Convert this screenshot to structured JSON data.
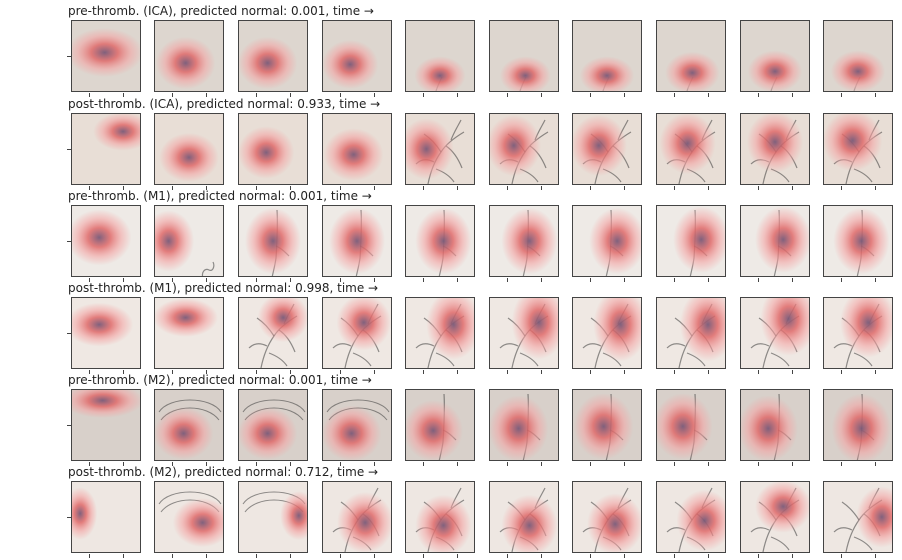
{
  "figure": {
    "rows": [
      {
        "title": "pre-thromb. (ICA), predicted normal: 0.001, time →",
        "bg": "#ddd6cf",
        "frames": [
          {
            "vessel": "none",
            "blob": [
              0.48,
              0.45,
              0.45,
              0.28
            ]
          },
          {
            "vessel": "none",
            "blob": [
              0.45,
              0.6,
              0.35,
              0.3
            ]
          },
          {
            "vessel": "none",
            "blob": [
              0.42,
              0.6,
              0.35,
              0.3
            ]
          },
          {
            "vessel": "none",
            "blob": [
              0.4,
              0.62,
              0.33,
              0.28
            ]
          },
          {
            "vessel": "faint",
            "blob": [
              0.5,
              0.78,
              0.3,
              0.22
            ]
          },
          {
            "vessel": "faint",
            "blob": [
              0.52,
              0.78,
              0.3,
              0.22
            ]
          },
          {
            "vessel": "faint",
            "blob": [
              0.5,
              0.78,
              0.32,
              0.22
            ]
          },
          {
            "vessel": "faint",
            "blob": [
              0.52,
              0.74,
              0.32,
              0.24
            ]
          },
          {
            "vessel": "faint",
            "blob": [
              0.5,
              0.72,
              0.32,
              0.24
            ]
          },
          {
            "vessel": "faint",
            "blob": [
              0.5,
              0.72,
              0.32,
              0.24
            ]
          }
        ]
      },
      {
        "title": "post-thromb. (ICA), predicted normal: 0.933, time →",
        "bg": "#e8ded6",
        "frames": [
          {
            "vessel": "none",
            "blob": [
              0.75,
              0.25,
              0.35,
              0.22
            ]
          },
          {
            "vessel": "none",
            "blob": [
              0.5,
              0.62,
              0.35,
              0.28
            ]
          },
          {
            "vessel": "none",
            "blob": [
              0.4,
              0.55,
              0.33,
              0.3
            ]
          },
          {
            "vessel": "none",
            "blob": [
              0.45,
              0.58,
              0.35,
              0.3
            ]
          },
          {
            "vessel": "tree",
            "blob": [
              0.3,
              0.5,
              0.32,
              0.35
            ]
          },
          {
            "vessel": "tree",
            "blob": [
              0.35,
              0.45,
              0.32,
              0.35
            ]
          },
          {
            "vessel": "tree",
            "blob": [
              0.38,
              0.45,
              0.33,
              0.35
            ]
          },
          {
            "vessel": "tree",
            "blob": [
              0.45,
              0.42,
              0.33,
              0.35
            ]
          },
          {
            "vessel": "tree",
            "blob": [
              0.5,
              0.4,
              0.33,
              0.35
            ]
          },
          {
            "vessel": "tree",
            "blob": [
              0.42,
              0.38,
              0.35,
              0.35
            ]
          }
        ]
      },
      {
        "title": "pre-thromb. (M1), predicted normal: 0.001, time →",
        "bg": "#eeeae6",
        "frames": [
          {
            "vessel": "none",
            "blob": [
              0.4,
              0.45,
              0.38,
              0.32
            ]
          },
          {
            "vessel": "hook",
            "blob": [
              0.2,
              0.5,
              0.3,
              0.35
            ]
          },
          {
            "vessel": "stem",
            "blob": [
              0.5,
              0.5,
              0.33,
              0.38
            ]
          },
          {
            "vessel": "stem",
            "blob": [
              0.5,
              0.5,
              0.33,
              0.38
            ]
          },
          {
            "vessel": "stem",
            "blob": [
              0.55,
              0.5,
              0.33,
              0.38
            ]
          },
          {
            "vessel": "stem",
            "blob": [
              0.58,
              0.5,
              0.33,
              0.38
            ]
          },
          {
            "vessel": "stem",
            "blob": [
              0.65,
              0.5,
              0.33,
              0.38
            ]
          },
          {
            "vessel": "stem",
            "blob": [
              0.65,
              0.48,
              0.33,
              0.38
            ]
          },
          {
            "vessel": "stem",
            "blob": [
              0.62,
              0.48,
              0.33,
              0.38
            ]
          },
          {
            "vessel": "stem",
            "blob": [
              0.55,
              0.5,
              0.33,
              0.38
            ]
          }
        ]
      },
      {
        "title": "post-thromb. (M1), predicted normal: 0.998, time →",
        "bg": "#efe8e3",
        "frames": [
          {
            "vessel": "none",
            "blob": [
              0.4,
              0.38,
              0.4,
              0.25
            ]
          },
          {
            "vessel": "none",
            "blob": [
              0.45,
              0.28,
              0.38,
              0.22
            ]
          },
          {
            "vessel": "tree",
            "blob": [
              0.65,
              0.28,
              0.3,
              0.28
            ]
          },
          {
            "vessel": "tree",
            "blob": [
              0.6,
              0.35,
              0.32,
              0.32
            ]
          },
          {
            "vessel": "tree",
            "blob": [
              0.7,
              0.38,
              0.32,
              0.4
            ]
          },
          {
            "vessel": "tree",
            "blob": [
              0.72,
              0.35,
              0.32,
              0.42
            ]
          },
          {
            "vessel": "tree",
            "blob": [
              0.7,
              0.38,
              0.32,
              0.42
            ]
          },
          {
            "vessel": "tree",
            "blob": [
              0.75,
              0.38,
              0.33,
              0.42
            ]
          },
          {
            "vessel": "tree",
            "blob": [
              0.7,
              0.3,
              0.33,
              0.42
            ]
          },
          {
            "vessel": "tree",
            "blob": [
              0.65,
              0.35,
              0.33,
              0.4
            ]
          }
        ]
      },
      {
        "title": "pre-thromb. (M2), predicted normal: 0.001, time →",
        "bg": "#d8d0ca",
        "frames": [
          {
            "vessel": "none",
            "blob": [
              0.45,
              0.15,
              0.48,
              0.2
            ]
          },
          {
            "vessel": "skull",
            "blob": [
              0.42,
              0.62,
              0.35,
              0.3
            ]
          },
          {
            "vessel": "skull",
            "blob": [
              0.42,
              0.62,
              0.35,
              0.3
            ]
          },
          {
            "vessel": "skull",
            "blob": [
              0.42,
              0.62,
              0.35,
              0.32
            ]
          },
          {
            "vessel": "stem",
            "blob": [
              0.4,
              0.58,
              0.35,
              0.35
            ]
          },
          {
            "vessel": "stem",
            "blob": [
              0.42,
              0.55,
              0.35,
              0.38
            ]
          },
          {
            "vessel": "stem",
            "blob": [
              0.45,
              0.52,
              0.35,
              0.38
            ]
          },
          {
            "vessel": "stem",
            "blob": [
              0.38,
              0.52,
              0.35,
              0.38
            ]
          },
          {
            "vessel": "stem",
            "blob": [
              0.4,
              0.55,
              0.35,
              0.38
            ]
          },
          {
            "vessel": "stem",
            "blob": [
              0.55,
              0.55,
              0.35,
              0.4
            ]
          }
        ]
      },
      {
        "title": "post-thromb. (M2), predicted normal: 0.712, time →",
        "bg": "#eee7e2",
        "frames": [
          {
            "vessel": "none",
            "blob": [
              0.12,
              0.45,
              0.2,
              0.3
            ]
          },
          {
            "vessel": "skull",
            "blob": [
              0.7,
              0.58,
              0.35,
              0.28
            ]
          },
          {
            "vessel": "skull",
            "blob": [
              0.88,
              0.48,
              0.22,
              0.28
            ]
          },
          {
            "vessel": "tree",
            "blob": [
              0.62,
              0.58,
              0.33,
              0.35
            ]
          },
          {
            "vessel": "tree",
            "blob": [
              0.55,
              0.62,
              0.33,
              0.35
            ]
          },
          {
            "vessel": "tree",
            "blob": [
              0.58,
              0.62,
              0.33,
              0.35
            ]
          },
          {
            "vessel": "tree",
            "blob": [
              0.62,
              0.6,
              0.33,
              0.35
            ]
          },
          {
            "vessel": "tree",
            "blob": [
              0.7,
              0.55,
              0.33,
              0.35
            ]
          },
          {
            "vessel": "tree",
            "blob": [
              0.62,
              0.35,
              0.33,
              0.3
            ]
          },
          {
            "vessel": "tree",
            "blob": [
              0.85,
              0.5,
              0.3,
              0.35
            ]
          }
        ]
      }
    ],
    "colors": {
      "heat_outer": "#f4a3a3",
      "heat_mid": "#e06a6a",
      "heat_core": "#7a5a78",
      "vessel": "#3a3a3a"
    }
  }
}
